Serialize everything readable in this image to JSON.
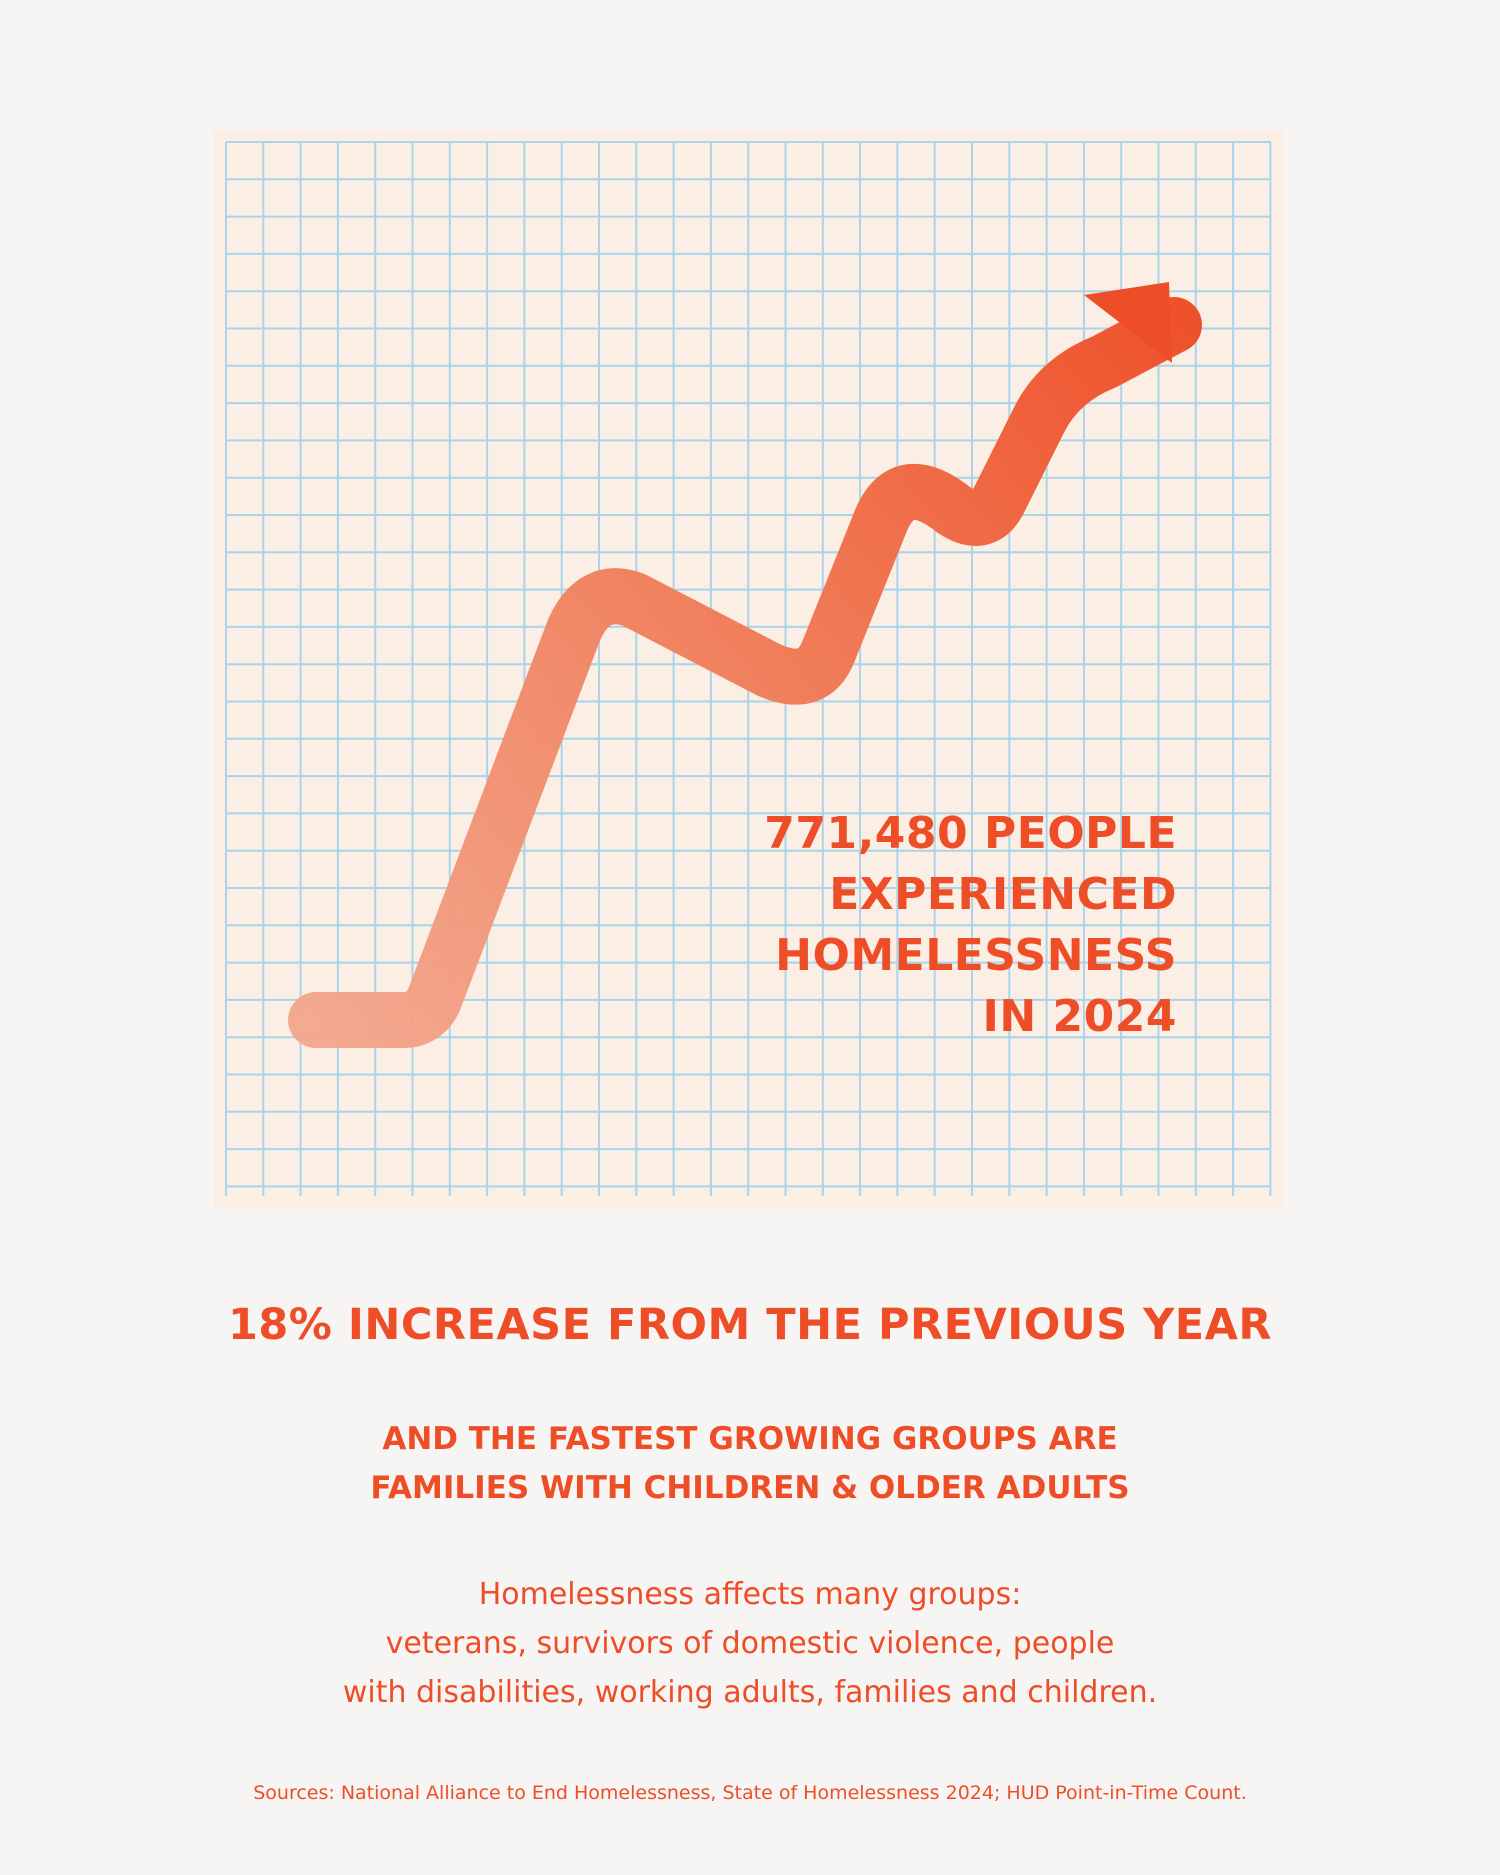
{
  "callout": {
    "line1": "771,480 PEOPLE",
    "line2": "EXPERIENCED",
    "line3": "HOMELESSNESS",
    "line4": "IN 2024"
  },
  "headline": "18% INCREASE FROM THE PREVIOUS YEAR",
  "subhead": {
    "line1": "AND THE FASTEST GROWING GROUPS ARE",
    "line2": "FAMILIES WITH CHILDREN & OLDER ADULTS"
  },
  "body": {
    "line1": "Homelessness affects many groups:",
    "line2": "veterans, survivors of domestic violence, people",
    "line3": "with disabilities, working adults, families and children."
  },
  "sources": "Sources: National Alliance to End Homelessness, State of Homelessness 2024; HUD Point-in-Time Count.",
  "colors": {
    "accent": "#ee4e27",
    "grid": "#a9d4ec",
    "paper": "#fbeee5",
    "background": "#f7f5f3"
  },
  "icons": [
    "rising-arrow-icon"
  ]
}
